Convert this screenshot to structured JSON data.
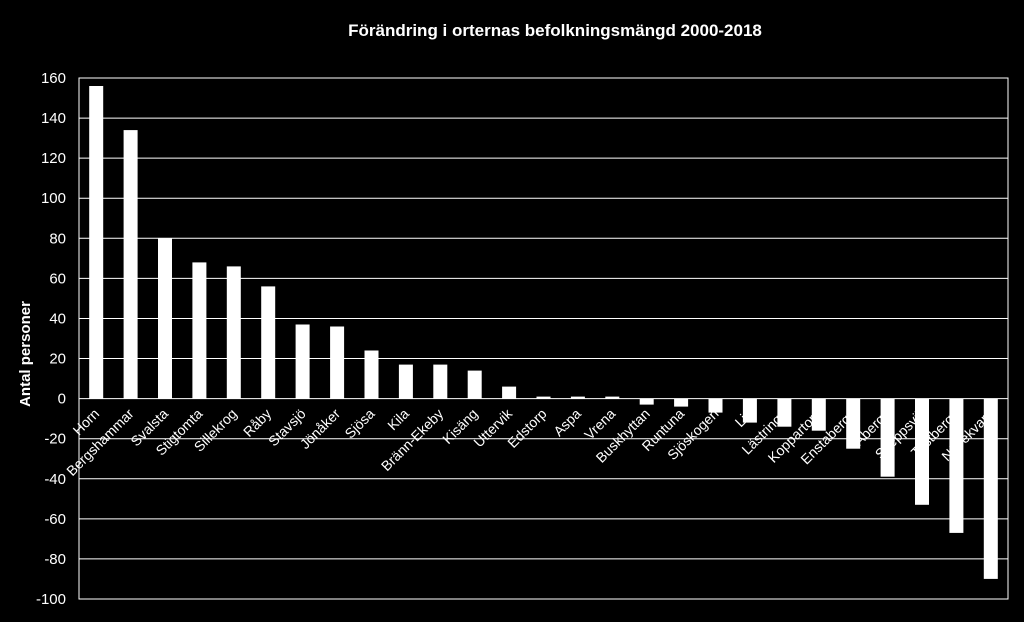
{
  "chart_data": {
    "type": "bar",
    "title": "Förändring i orternas befolkningsmängd 2000-2018",
    "xlabel": "",
    "ylabel": "Antal personer",
    "ylim": [
      -100,
      160
    ],
    "yticks": [
      160,
      140,
      120,
      100,
      80,
      60,
      40,
      20,
      0,
      -20,
      -40,
      -60,
      -80,
      -100
    ],
    "grid": true,
    "legend": "none",
    "categories": [
      "Horn",
      "Bergshammar",
      "Svalsta",
      "Stigtomta",
      "Sillekrog",
      "Råby",
      "Stavsjö",
      "Jönåker",
      "Sjösa",
      "Kila",
      "Bränn-Ekeby",
      "Kisäng",
      "Uttervik",
      "Edstorp",
      "Aspa",
      "Vrena",
      "Buskhyttan",
      "Runtuna",
      "Sjöskogen",
      "Lid",
      "Lästringe",
      "Koppartorp",
      "Enstaberga",
      "Åberga",
      "Skeppsvik",
      "Tystberga",
      "Nävekvarn"
    ],
    "values": [
      156,
      134,
      80,
      68,
      66,
      56,
      37,
      36,
      24,
      17,
      17,
      14,
      6,
      1,
      1,
      1,
      -3,
      -4,
      -7,
      -12,
      -14,
      -16,
      -25,
      -39,
      -53,
      -67,
      -90
    ],
    "colors": {
      "background": "#000000",
      "bars": "#ffffff",
      "grid": "#ffffff",
      "text": "#ffffff"
    }
  }
}
